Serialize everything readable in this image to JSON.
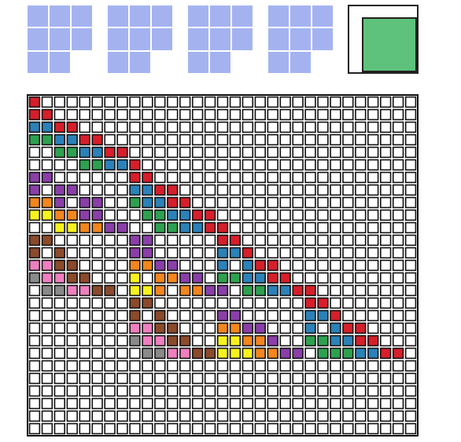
{
  "colors": {
    "tile_fill": "#a4b3f0",
    "tile_empty": "#ffffff",
    "tile_line": "#ffffff",
    "big_fill": "#5ec27c",
    "grid_line": "#111111",
    "red": "#d61f2b",
    "blue": "#2b82b8",
    "green": "#2ea150",
    "purple": "#8a3fa8",
    "orange": "#f2861f",
    "yellow": "#f7f21e",
    "brown": "#8b4a2b",
    "pink": "#ef7fbf",
    "gray": "#8a8a8a",
    "white": "#ffffff"
  },
  "tiles": [
    {
      "name": "tile-1",
      "cols": 3,
      "rows": 3,
      "empty": [
        [
          2,
          2
        ]
      ]
    },
    {
      "name": "tile-2",
      "cols": 3,
      "rows": 3,
      "empty": [
        [
          2,
          2
        ]
      ]
    },
    {
      "name": "tile-3",
      "cols": 3,
      "rows": 3,
      "empty": [
        [
          2,
          2
        ]
      ]
    },
    {
      "name": "tile-4",
      "cols": 3,
      "rows": 3,
      "empty": [
        [
          2,
          2
        ]
      ]
    }
  ],
  "grid": {
    "cols": 31,
    "rows": 27,
    "cells": [
      [
        0,
        0,
        "red"
      ],
      [
        0,
        1,
        "red"
      ],
      [
        1,
        1,
        "red"
      ],
      [
        0,
        2,
        "blue"
      ],
      [
        1,
        2,
        "blue"
      ],
      [
        2,
        2,
        "red"
      ],
      [
        3,
        2,
        "red"
      ],
      [
        0,
        3,
        "green"
      ],
      [
        1,
        3,
        "green"
      ],
      [
        2,
        3,
        "blue"
      ],
      [
        3,
        3,
        "blue"
      ],
      [
        4,
        3,
        "red"
      ],
      [
        5,
        3,
        "red"
      ],
      [
        2,
        4,
        "green"
      ],
      [
        3,
        4,
        "green"
      ],
      [
        4,
        4,
        "blue"
      ],
      [
        5,
        4,
        "blue"
      ],
      [
        6,
        4,
        "red"
      ],
      [
        7,
        4,
        "red"
      ],
      [
        4,
        5,
        "green"
      ],
      [
        5,
        5,
        "green"
      ],
      [
        6,
        5,
        "blue"
      ],
      [
        7,
        5,
        "blue"
      ],
      [
        8,
        5,
        "red"
      ],
      [
        0,
        6,
        "purple"
      ],
      [
        1,
        6,
        "purple"
      ],
      [
        8,
        6,
        "red"
      ],
      [
        9,
        6,
        "red"
      ],
      [
        0,
        7,
        "purple"
      ],
      [
        2,
        7,
        "purple"
      ],
      [
        3,
        7,
        "purple"
      ],
      [
        8,
        7,
        "blue"
      ],
      [
        9,
        7,
        "blue"
      ],
      [
        10,
        7,
        "red"
      ],
      [
        11,
        7,
        "red"
      ],
      [
        0,
        8,
        "orange"
      ],
      [
        1,
        8,
        "orange"
      ],
      [
        2,
        8,
        "purple"
      ],
      [
        4,
        8,
        "purple"
      ],
      [
        5,
        8,
        "purple"
      ],
      [
        8,
        8,
        "green"
      ],
      [
        9,
        8,
        "blue"
      ],
      [
        10,
        8,
        "blue"
      ],
      [
        11,
        8,
        "red"
      ],
      [
        12,
        8,
        "red"
      ],
      [
        0,
        9,
        "yellow"
      ],
      [
        1,
        9,
        "yellow"
      ],
      [
        2,
        9,
        "orange"
      ],
      [
        3,
        9,
        "orange"
      ],
      [
        4,
        9,
        "purple"
      ],
      [
        5,
        9,
        "purple"
      ],
      [
        9,
        9,
        "green"
      ],
      [
        10,
        9,
        "green"
      ],
      [
        11,
        9,
        "blue"
      ],
      [
        12,
        9,
        "blue"
      ],
      [
        13,
        9,
        "red"
      ],
      [
        14,
        9,
        "red"
      ],
      [
        2,
        10,
        "yellow"
      ],
      [
        3,
        10,
        "yellow"
      ],
      [
        4,
        10,
        "orange"
      ],
      [
        5,
        10,
        "orange"
      ],
      [
        6,
        10,
        "purple"
      ],
      [
        7,
        10,
        "purple"
      ],
      [
        10,
        10,
        "green"
      ],
      [
        11,
        10,
        "green"
      ],
      [
        12,
        10,
        "blue"
      ],
      [
        13,
        10,
        "blue"
      ],
      [
        14,
        10,
        "red"
      ],
      [
        15,
        10,
        "red"
      ],
      [
        0,
        11,
        "brown"
      ],
      [
        1,
        11,
        "brown"
      ],
      [
        8,
        11,
        "purple"
      ],
      [
        9,
        11,
        "purple"
      ],
      [
        15,
        11,
        "red"
      ],
      [
        16,
        11,
        "red"
      ],
      [
        0,
        12,
        "brown"
      ],
      [
        2,
        12,
        "brown"
      ],
      [
        8,
        12,
        "purple"
      ],
      [
        9,
        12,
        "purple"
      ],
      [
        15,
        12,
        "blue"
      ],
      [
        16,
        12,
        "blue"
      ],
      [
        17,
        12,
        "red"
      ],
      [
        0,
        13,
        "pink"
      ],
      [
        1,
        13,
        "pink"
      ],
      [
        2,
        13,
        "brown"
      ],
      [
        3,
        13,
        "brown"
      ],
      [
        8,
        13,
        "orange"
      ],
      [
        9,
        13,
        "orange"
      ],
      [
        10,
        13,
        "purple"
      ],
      [
        11,
        13,
        "purple"
      ],
      [
        15,
        13,
        "blue"
      ],
      [
        17,
        13,
        "blue"
      ],
      [
        18,
        13,
        "red"
      ],
      [
        19,
        13,
        "red"
      ],
      [
        0,
        14,
        "gray"
      ],
      [
        1,
        14,
        "pink"
      ],
      [
        2,
        14,
        "pink"
      ],
      [
        3,
        14,
        "brown"
      ],
      [
        4,
        14,
        "brown"
      ],
      [
        8,
        14,
        "yellow"
      ],
      [
        10,
        14,
        "orange"
      ],
      [
        11,
        14,
        "orange"
      ],
      [
        12,
        14,
        "purple"
      ],
      [
        13,
        14,
        "purple"
      ],
      [
        15,
        14,
        "green"
      ],
      [
        16,
        14,
        "green"
      ],
      [
        17,
        14,
        "blue"
      ],
      [
        18,
        14,
        "blue"
      ],
      [
        19,
        14,
        "red"
      ],
      [
        20,
        14,
        "red"
      ],
      [
        1,
        15,
        "gray"
      ],
      [
        2,
        15,
        "gray"
      ],
      [
        3,
        15,
        "pink"
      ],
      [
        4,
        15,
        "pink"
      ],
      [
        5,
        15,
        "brown"
      ],
      [
        6,
        15,
        "brown"
      ],
      [
        8,
        15,
        "yellow"
      ],
      [
        9,
        15,
        "yellow"
      ],
      [
        10,
        15,
        "orange"
      ],
      [
        12,
        15,
        "orange"
      ],
      [
        13,
        15,
        "orange"
      ],
      [
        14,
        15,
        "purple"
      ],
      [
        15,
        15,
        "purple"
      ],
      [
        17,
        15,
        "green"
      ],
      [
        18,
        15,
        "green"
      ],
      [
        19,
        15,
        "blue"
      ],
      [
        20,
        15,
        "blue"
      ],
      [
        21,
        15,
        "red"
      ],
      [
        22,
        15,
        "red"
      ],
      [
        8,
        16,
        "brown"
      ],
      [
        9,
        16,
        "brown"
      ],
      [
        22,
        16,
        "red"
      ],
      [
        23,
        16,
        "red"
      ],
      [
        8,
        17,
        "brown"
      ],
      [
        10,
        17,
        "brown"
      ],
      [
        15,
        17,
        "purple"
      ],
      [
        16,
        17,
        "purple"
      ],
      [
        22,
        17,
        "blue"
      ],
      [
        23,
        17,
        "blue"
      ],
      [
        24,
        17,
        "red"
      ],
      [
        8,
        18,
        "pink"
      ],
      [
        9,
        18,
        "pink"
      ],
      [
        10,
        18,
        "brown"
      ],
      [
        11,
        18,
        "brown"
      ],
      [
        15,
        18,
        "orange"
      ],
      [
        16,
        18,
        "orange"
      ],
      [
        17,
        18,
        "purple"
      ],
      [
        18,
        18,
        "purple"
      ],
      [
        22,
        18,
        "blue"
      ],
      [
        24,
        18,
        "blue"
      ],
      [
        25,
        18,
        "red"
      ],
      [
        26,
        18,
        "red"
      ],
      [
        8,
        19,
        "gray"
      ],
      [
        9,
        19,
        "pink"
      ],
      [
        10,
        19,
        "pink"
      ],
      [
        11,
        19,
        "brown"
      ],
      [
        12,
        19,
        "brown"
      ],
      [
        15,
        19,
        "yellow"
      ],
      [
        16,
        19,
        "yellow"
      ],
      [
        17,
        19,
        "orange"
      ],
      [
        18,
        19,
        "orange"
      ],
      [
        19,
        19,
        "purple"
      ],
      [
        22,
        19,
        "green"
      ],
      [
        23,
        19,
        "green"
      ],
      [
        24,
        19,
        "blue"
      ],
      [
        25,
        19,
        "blue"
      ],
      [
        26,
        19,
        "red"
      ],
      [
        27,
        19,
        "red"
      ],
      [
        9,
        20,
        "gray"
      ],
      [
        10,
        20,
        "gray"
      ],
      [
        11,
        20,
        "pink"
      ],
      [
        12,
        20,
        "pink"
      ],
      [
        13,
        20,
        "brown"
      ],
      [
        14,
        20,
        "brown"
      ],
      [
        15,
        20,
        "yellow"
      ],
      [
        16,
        20,
        "yellow"
      ],
      [
        17,
        20,
        "yellow"
      ],
      [
        18,
        20,
        "orange"
      ],
      [
        19,
        20,
        "orange"
      ],
      [
        20,
        20,
        "purple"
      ],
      [
        21,
        20,
        "purple"
      ],
      [
        23,
        20,
        "green"
      ],
      [
        24,
        20,
        "green"
      ],
      [
        25,
        20,
        "green"
      ],
      [
        26,
        20,
        "blue"
      ],
      [
        27,
        20,
        "blue"
      ],
      [
        28,
        20,
        "red"
      ],
      [
        29,
        20,
        "red"
      ]
    ]
  }
}
